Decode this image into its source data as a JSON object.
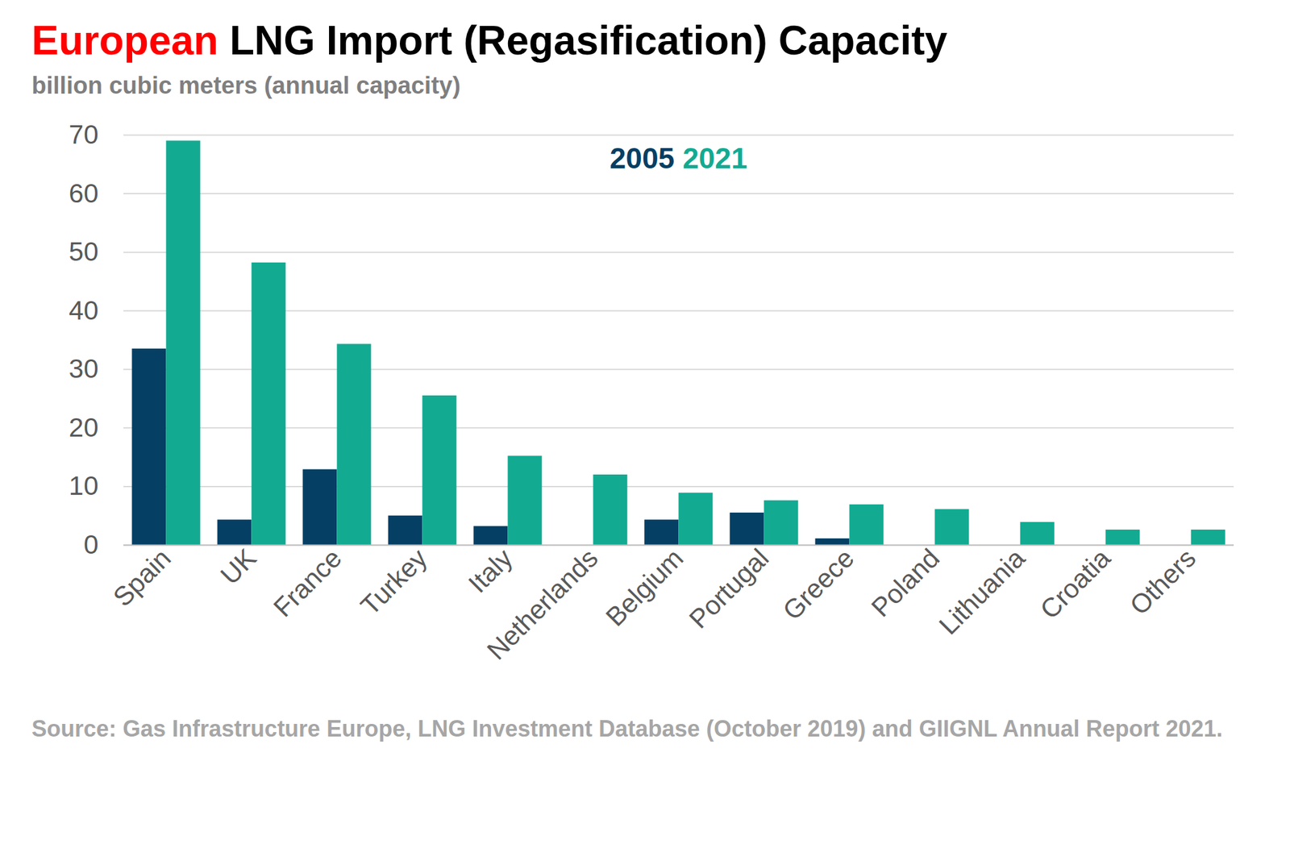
{
  "chart_data": {
    "type": "bar",
    "title": "European LNG Import (Regasification) Capacity",
    "subtitle": "billion cubic meters (annual capacity)",
    "caption": "Source: Gas Infrastructure Europe, LNG Investment Database (October 2019) and GIIGNL Annual Report 2021.",
    "categories": [
      "Spain",
      "UK",
      "France",
      "Turkey",
      "Italy",
      "Netherlands",
      "Belgium",
      "Portugal",
      "Greece",
      "Poland",
      "Lithuania",
      "Croatia",
      "Others"
    ],
    "series": [
      {
        "name": "2005",
        "color": "#053f63",
        "values": [
          33.5,
          4.3,
          12.9,
          5.0,
          3.2,
          null,
          4.3,
          5.5,
          1.1,
          null,
          null,
          null,
          null
        ]
      },
      {
        "name": "2021",
        "color": "#13aa92",
        "values": [
          69.0,
          48.2,
          34.3,
          25.5,
          15.2,
          12.0,
          8.9,
          7.6,
          6.9,
          6.1,
          3.9,
          2.6,
          2.6
        ]
      }
    ],
    "ylim": [
      0,
      70
    ],
    "yticks": [
      0,
      10,
      20,
      30,
      40,
      50,
      60,
      70
    ],
    "grid": true,
    "legend": "top"
  }
}
